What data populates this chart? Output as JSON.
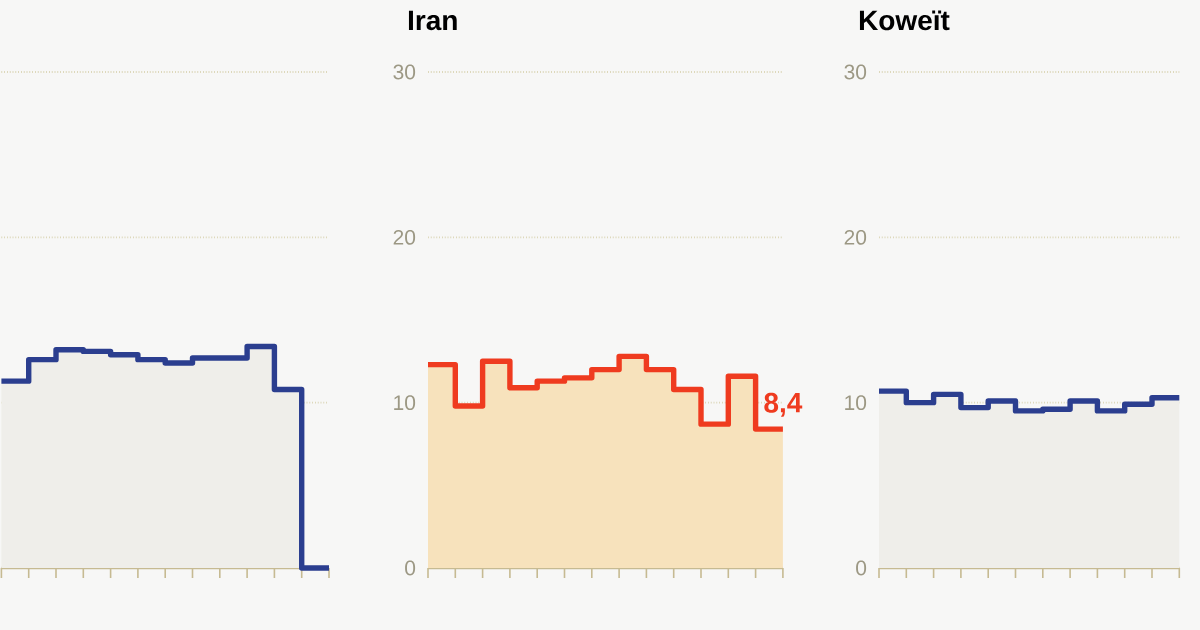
{
  "chart_data": [
    {
      "type": "step",
      "categories": [
        null,
        null,
        null,
        null,
        null,
        null,
        null,
        null,
        null,
        null,
        null,
        null,
        null
      ],
      "series": [
        {
          "type": "area",
          "color": "#efeeea",
          "values": [
            11.3,
            12.6,
            13.2,
            13.1,
            12.9,
            12.6,
            12.4,
            12.7,
            12.7,
            13.4,
            10.8,
            0,
            null
          ]
        },
        {
          "color": "#2b3e8f",
          "values": [
            11.3,
            12.6,
            13.2,
            13.1,
            12.9,
            12.6,
            12.4,
            12.7,
            12.7,
            13.4,
            10.8,
            0,
            0
          ]
        }
      ],
      "ylim": [
        0,
        30
      ],
      "yticks": [
        0,
        10,
        20,
        30
      ],
      "grid": "y",
      "tick_labels": false
    },
    {
      "type": "step",
      "title": "Iran",
      "categories": [
        null,
        null,
        null,
        null,
        null,
        null,
        null,
        null,
        null,
        null,
        null,
        null,
        null,
        null
      ],
      "series": [
        {
          "type": "area",
          "color": "#f7e2bc",
          "values": [
            12.3,
            9.8,
            12.5,
            10.9,
            11.3,
            11.5,
            12.0,
            12.8,
            12.0,
            10.8,
            8.7,
            11.6,
            8.4,
            8.4
          ]
        },
        {
          "color": "#ef3b1f",
          "values": [
            12.3,
            9.8,
            12.5,
            10.9,
            11.3,
            11.5,
            12.0,
            12.8,
            12.0,
            10.8,
            8.7,
            11.6,
            8.4,
            8.4
          ],
          "value_labels": [
            null,
            null,
            null,
            null,
            null,
            null,
            null,
            null,
            null,
            null,
            null,
            null,
            null,
            "8,4"
          ]
        }
      ],
      "ylim": [
        0,
        30
      ],
      "yticks": [
        0,
        10,
        20,
        30
      ],
      "grid": "y",
      "tick_labels": "y"
    },
    {
      "type": "step",
      "title": "Koweït",
      "categories": [
        null,
        null,
        null,
        null,
        null,
        null,
        null,
        null,
        null,
        null,
        null,
        null
      ],
      "series": [
        {
          "type": "area",
          "color": "#efeeea",
          "values": [
            10.7,
            10.0,
            10.5,
            9.7,
            10.1,
            9.5,
            9.6,
            10.1,
            9.5,
            9.9,
            10.3,
            10.3
          ]
        },
        {
          "color": "#2b3e8f",
          "values": [
            10.7,
            10.0,
            10.5,
            9.7,
            10.1,
            9.5,
            9.6,
            10.1,
            9.5,
            9.9,
            10.3,
            10.3
          ]
        }
      ],
      "ylim": [
        0,
        30
      ],
      "yticks": [
        0,
        10,
        20,
        30
      ],
      "grid": "y",
      "tick_labels": "y"
    }
  ]
}
